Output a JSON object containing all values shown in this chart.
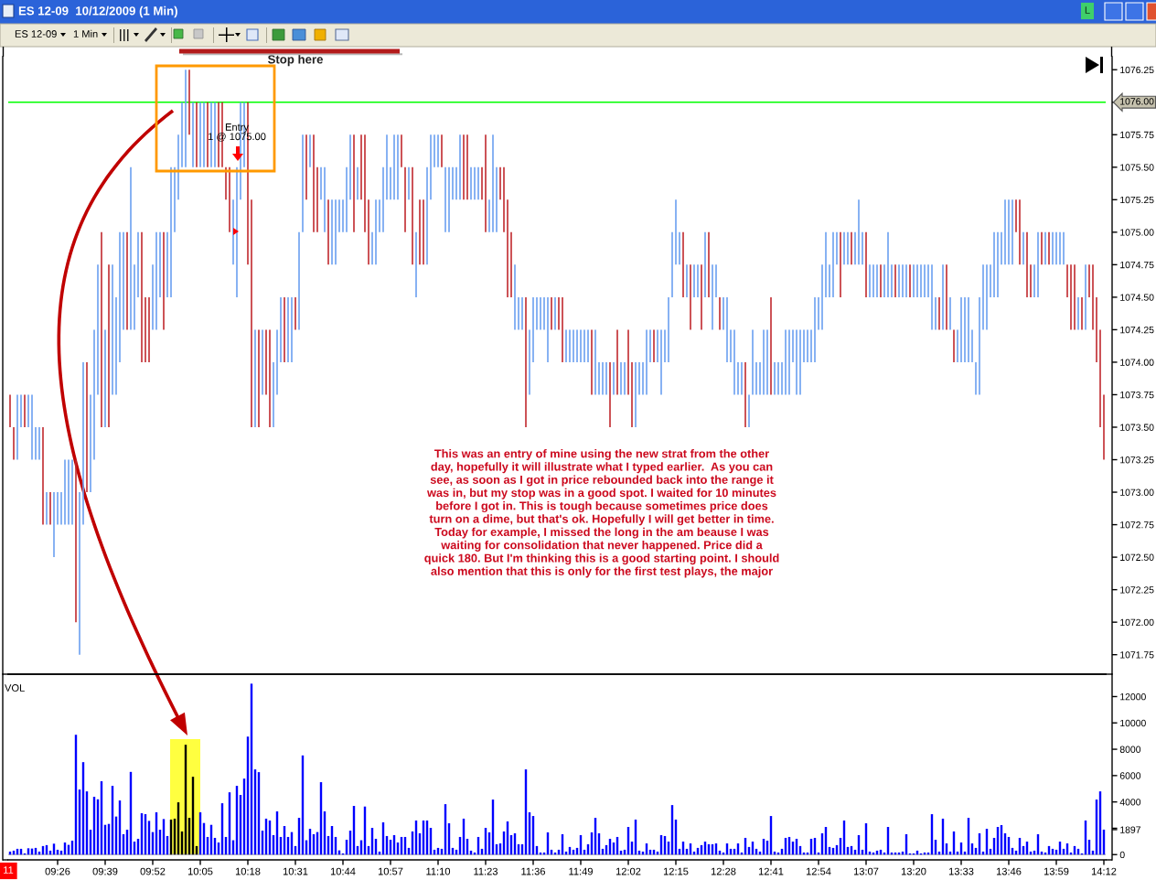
{
  "chart_data": [
    {
      "type": "bar",
      "title": "ES 12-09  10/12/2009 (1 Min)",
      "categories": [
        null,
        null,
        null,
        null,
        null,
        null,
        null,
        null,
        null,
        null,
        null,
        null,
        null,
        null,
        null,
        null,
        null,
        null,
        null,
        null,
        null,
        null,
        null,
        null,
        null,
        null,
        null,
        null,
        null,
        null,
        null,
        null,
        null,
        null,
        null,
        null,
        null,
        null,
        null,
        null,
        null,
        null,
        null,
        null,
        null,
        null,
        null,
        null,
        null,
        null,
        null,
        null,
        null,
        null,
        null,
        null,
        null,
        null,
        null,
        null,
        null,
        null,
        null,
        null,
        null,
        null,
        null,
        null,
        null,
        null,
        null,
        null,
        null,
        null,
        null,
        null,
        null,
        null,
        null,
        null,
        null,
        null,
        null,
        null,
        null,
        null,
        null,
        null,
        null,
        null,
        null,
        null,
        null,
        null,
        null,
        null,
        null,
        null,
        null,
        null,
        null,
        null,
        null,
        null,
        null,
        null,
        null,
        null,
        null,
        null,
        null,
        null,
        null,
        null,
        null,
        null,
        null,
        null,
        null,
        null,
        null,
        null,
        null,
        null,
        null,
        null,
        null,
        null,
        null,
        null,
        null,
        null,
        null,
        null,
        null,
        null,
        null,
        null,
        null,
        null,
        null,
        null,
        null,
        null,
        null,
        null,
        null,
        null,
        null,
        null,
        null,
        null,
        null,
        null,
        null,
        null,
        null,
        null,
        null,
        null,
        null,
        null,
        null,
        null,
        null,
        null,
        null,
        null,
        null,
        null,
        null,
        null,
        null,
        null,
        null,
        null,
        null,
        null,
        null,
        null,
        null,
        null,
        null,
        null,
        null,
        null,
        null,
        null,
        null,
        null,
        null,
        null,
        null,
        null,
        null,
        null,
        null,
        null,
        null,
        null,
        null,
        null,
        null,
        null,
        null,
        null,
        null,
        null,
        null,
        null,
        null,
        null,
        null,
        null,
        null,
        null,
        null,
        null,
        null,
        null,
        null,
        null,
        null,
        null,
        null,
        null,
        null,
        null,
        null,
        null,
        null,
        null,
        null,
        null,
        null,
        null,
        null,
        null,
        null,
        null,
        null,
        null,
        null,
        null,
        null,
        null,
        null,
        null,
        null,
        null,
        null,
        null,
        null,
        null,
        null,
        null,
        null,
        null,
        null,
        null,
        null,
        null,
        null,
        null,
        null,
        null,
        null,
        null,
        null,
        null,
        null,
        null,
        null,
        null,
        null,
        null,
        null,
        null,
        null,
        null,
        null,
        null,
        null,
        null,
        null,
        null,
        null,
        null,
        null,
        null,
        null,
        null,
        null,
        null,
        null,
        null,
        null,
        null,
        null,
        null
      ],
      "base": [
        1073.5,
        1073.25,
        1073.25,
        1073.5,
        1073.5,
        1073.5,
        1073.25,
        1073.25,
        1073.25,
        1072.75,
        1072.75,
        1072.75,
        1072.5,
        1072.75,
        1072.75,
        1072.75,
        1072.75,
        1072.75,
        1072.0,
        1071.75,
        1072.75,
        1073.0,
        1073.0,
        1073.25,
        1073.75,
        1073.5,
        1073.5,
        1073.5,
        1073.75,
        1073.75,
        1074.0,
        1074.25,
        1074.25,
        1074.25,
        1074.25,
        1074.5,
        1074.0,
        1074.0,
        1074.0,
        1074.25,
        1074.25,
        1074.5,
        1074.25,
        1074.5,
        1074.5,
        1075.0,
        1075.25,
        1075.5,
        1075.5,
        1075.75,
        1075.5,
        1075.5,
        1075.5,
        1075.5,
        1075.5,
        1075.5,
        1075.5,
        1075.5,
        1075.5,
        1075.25,
        1075.0,
        1074.75,
        1074.5,
        1075.25,
        1075.5,
        1074.75,
        1073.5,
        1073.5,
        1073.5,
        1073.75,
        1073.75,
        1073.5,
        1073.5,
        1073.75,
        1074.0,
        1074.0,
        1074.0,
        1074.0,
        1074.25,
        1074.25,
        1075.0,
        1075.25,
        1075.5,
        1075.0,
        1075.0,
        1075.25,
        1075.0,
        1074.75,
        1074.75,
        1074.75,
        1075.0,
        1075.0,
        1075.0,
        1075.25,
        1075.0,
        1075.25,
        1075.25,
        1075.0,
        1074.75,
        1074.75,
        1074.75,
        1075.0,
        1075.0,
        1075.25,
        1075.25,
        1075.25,
        1075.25,
        1075.5,
        1075.0,
        1075.25,
        1074.75,
        1074.5,
        1074.75,
        1074.75,
        1074.75,
        1075.25,
        1075.5,
        1075.5,
        1075.5,
        1075.0,
        1075.0,
        1075.25,
        1075.25,
        1075.25,
        1075.25,
        1075.25,
        1075.25,
        1075.25,
        1075.25,
        1075.25,
        1075.0,
        1075.0,
        1075.0,
        1075.0,
        1075.25,
        1075.0,
        1074.5,
        1074.5,
        1074.25,
        1074.25,
        1074.25,
        1073.5,
        1073.75,
        1074.0,
        1074.25,
        1074.25,
        1074.25,
        1074.0,
        1074.25,
        1074.25,
        1074.25,
        1074.0,
        1074.0,
        1074.0,
        1074.0,
        1074.0,
        1074.0,
        1074.0,
        1074.0,
        1073.75,
        1073.75,
        1073.75,
        1073.75,
        1073.75,
        1073.5,
        1073.75,
        1073.75,
        1073.75,
        1073.75,
        1073.75,
        1073.5,
        1073.5,
        1073.75,
        1073.75,
        1073.75,
        1074.0,
        1074.0,
        1074.0,
        1073.75,
        1074.0,
        1074.0,
        1074.5,
        1074.75,
        1074.75,
        1074.5,
        1074.5,
        1074.25,
        1074.5,
        1074.5,
        1074.25,
        1074.5,
        1074.5,
        1074.25,
        1074.5,
        1074.25,
        1074.25,
        1074.0,
        1074.0,
        1073.75,
        1073.75,
        1073.75,
        1073.5,
        1073.5,
        1073.75,
        1073.75,
        1073.75,
        1073.75,
        1073.75,
        1073.75,
        1073.75,
        1073.75,
        1073.75,
        1073.75,
        1073.75,
        1074.0,
        1073.75,
        1073.75,
        1074.0,
        1074.0,
        1074.0,
        1074.0,
        1074.25,
        1074.25,
        1074.5,
        1074.5,
        1074.5,
        1074.75,
        1074.5,
        1074.75,
        1074.75,
        1074.75,
        1074.75,
        1074.75,
        1074.75,
        1074.5,
        1074.5,
        1074.5,
        1074.5,
        1074.5,
        1074.5,
        1074.5,
        1074.5,
        1074.5,
        1074.5,
        1074.5,
        1074.5,
        1074.5,
        1074.5,
        1074.5,
        1074.5,
        1074.5,
        1074.5,
        1074.25,
        1074.25,
        1074.25,
        1074.25,
        1074.25,
        1074.25,
        1074.0,
        1074.0,
        1074.0,
        1074.0,
        1074.0,
        1074.0,
        1073.75,
        1073.75,
        1074.25,
        1074.25,
        1074.5,
        1074.5,
        1074.5,
        1074.75,
        1074.75,
        1074.75,
        1074.75,
        1075.0,
        1074.75,
        1074.75,
        1074.5,
        1074.5,
        1074.5,
        1074.5,
        1074.75,
        1074.75,
        1074.75,
        1074.75,
        1074.75,
        1074.75,
        1074.75,
        1074.5,
        1074.25,
        1074.25,
        1074.25,
        1074.25,
        1074.25,
        1074.5,
        1074.25,
        1074.0,
        1073.5,
        1073.25
      ],
      "values": [
        0.25,
        0.25,
        0.5,
        0.25,
        0.25,
        0.25,
        0.5,
        0.25,
        0.25,
        0.75,
        0.25,
        0.25,
        0.5,
        0.25,
        0.25,
        0.5,
        0.5,
        0.5,
        1.25,
        1.25,
        1.25,
        1.0,
        0.75,
        1.0,
        1.0,
        1.5,
        0.75,
        1.25,
        1.0,
        0.75,
        1.0,
        0.75,
        0.75,
        1.25,
        0.5,
        0.5,
        1.0,
        0.5,
        0.5,
        0.5,
        0.75,
        0.5,
        0.75,
        0.5,
        1.0,
        0.5,
        0.5,
        0.5,
        0.75,
        0.5,
        0.5,
        0.5,
        0.5,
        0.5,
        0.5,
        0.5,
        0.5,
        0.5,
        0.5,
        0.25,
        0.5,
        0.5,
        1.0,
        0.75,
        0.5,
        1.25,
        1.75,
        0.75,
        0.75,
        0.5,
        0.5,
        0.75,
        0.5,
        0.5,
        0.5,
        0.5,
        0.5,
        0.5,
        0.25,
        0.75,
        0.75,
        0.5,
        0.25,
        0.75,
        0.5,
        0.25,
        0.5,
        0.5,
        0.5,
        0.5,
        0.25,
        0.25,
        0.5,
        0.5,
        0.75,
        0.25,
        0.5,
        0.75,
        0.5,
        0.25,
        0.5,
        0.25,
        0.5,
        0.5,
        0.25,
        0.5,
        0.5,
        0.25,
        0.5,
        0.25,
        0.75,
        0.5,
        0.5,
        0.5,
        0.75,
        0.5,
        0.25,
        0.25,
        0.25,
        0.5,
        0.5,
        0.25,
        0.25,
        0.5,
        0.5,
        0.5,
        0.25,
        0.25,
        0.25,
        0.25,
        0.75,
        0.25,
        0.75,
        0.5,
        0.25,
        0.5,
        0.75,
        0.5,
        0.5,
        0.25,
        0.25,
        1.0,
        0.5,
        0.5,
        0.25,
        0.25,
        0.25,
        0.5,
        0.25,
        0.25,
        0.25,
        0.5,
        0.25,
        0.25,
        0.25,
        0.25,
        0.25,
        0.25,
        0.25,
        0.5,
        0.5,
        0.25,
        0.25,
        0.25,
        0.5,
        0.25,
        0.5,
        0.25,
        0.25,
        0.5,
        0.5,
        0.5,
        0.25,
        0.25,
        0.5,
        0.25,
        0.25,
        0.25,
        0.5,
        0.25,
        0.5,
        0.5,
        0.5,
        0.25,
        0.5,
        0.25,
        0.5,
        0.25,
        0.25,
        0.5,
        0.5,
        0.5,
        0.5,
        0.25,
        0.25,
        0.25,
        0.5,
        0.25,
        0.5,
        0.25,
        0.25,
        0.5,
        0.25,
        0.5,
        0.25,
        0.25,
        0.5,
        0.5,
        0.75,
        0.25,
        0.25,
        0.25,
        0.5,
        0.5,
        0.25,
        0.5,
        0.5,
        0.25,
        0.25,
        0.25,
        0.5,
        0.25,
        0.5,
        0.5,
        0.25,
        0.5,
        0.25,
        0.5,
        0.25,
        0.25,
        0.25,
        0.25,
        0.5,
        0.25,
        0.5,
        0.25,
        0.25,
        0.25,
        0.25,
        0.25,
        0.5,
        0.25,
        0.25,
        0.25,
        0.25,
        0.25,
        0.25,
        0.25,
        0.25,
        0.25,
        0.25,
        0.25,
        0.5,
        0.25,
        0.25,
        0.5,
        0.5,
        0.25,
        0.25,
        0.25,
        0.5,
        0.5,
        0.5,
        0.25,
        0.25,
        0.75,
        0.5,
        0.5,
        0.25,
        0.5,
        0.5,
        0.25,
        0.5,
        0.5,
        0.5,
        0.25,
        0.5,
        0.25,
        0.5,
        0.25,
        0.25,
        0.5,
        0.25,
        0.25,
        0.25,
        0.25,
        0.25,
        0.25,
        0.25,
        0.25,
        0.5,
        0.5,
        0.25,
        0.25,
        0.5,
        0.25,
        0.5,
        0.5,
        0.75,
        0.5
      ],
      "colors": [
        "#c0282d",
        "#c0282d",
        "#6a9ff0",
        "#6a9ff0",
        "#c0282d",
        "#6a9ff0",
        "#6a9ff0",
        "#6a9ff0",
        "#6a9ff0",
        "#c0282d",
        "#6a9ff0",
        "#c0282d",
        "#6a9ff0",
        "#6a9ff0",
        "#6a9ff0",
        "#6a9ff0",
        "#6a9ff0",
        "#6a9ff0",
        "#c0282d",
        "#6a9ff0",
        "#6a9ff0",
        "#c0282d",
        "#6a9ff0",
        "#6a9ff0",
        "#6a9ff0",
        "#c0282d",
        "#6a9ff0",
        "#c0282d",
        "#6a9ff0",
        "#6a9ff0",
        "#6a9ff0",
        "#6a9ff0",
        "#c0282d",
        "#6a9ff0",
        "#6a9ff0",
        "#6a9ff0",
        "#c0282d",
        "#c0282d",
        "#c0282d",
        "#6a9ff0",
        "#6a9ff0",
        "#6a9ff0",
        "#c0282d",
        "#6a9ff0",
        "#6a9ff0",
        "#6a9ff0",
        "#6a9ff0",
        "#6a9ff0",
        "#6a9ff0",
        "#c0282d",
        "#6a9ff0",
        "#c0282d",
        "#6a9ff0",
        "#6a9ff0",
        "#c0282d",
        "#6a9ff0",
        "#6a9ff0",
        "#c0282d",
        "#c0282d",
        "#c0282d",
        "#c0282d",
        "#6a9ff0",
        "#6a9ff0",
        "#6a9ff0",
        "#6a9ff0",
        "#c0282d",
        "#c0282d",
        "#6a9ff0",
        "#c0282d",
        "#6a9ff0",
        "#c0282d",
        "#c0282d",
        "#6a9ff0",
        "#6a9ff0",
        "#6a9ff0",
        "#c0282d",
        "#6a9ff0",
        "#6a9ff0",
        "#c0282d",
        "#6a9ff0",
        "#6a9ff0",
        "#c0282d",
        "#6a9ff0",
        "#c0282d",
        "#c0282d",
        "#6a9ff0",
        "#6a9ff0",
        "#c0282d",
        "#6a9ff0",
        "#6a9ff0",
        "#6a9ff0",
        "#6a9ff0",
        "#6a9ff0",
        "#6a9ff0",
        "#c0282d",
        "#6a9ff0",
        "#c0282d",
        "#c0282d",
        "#c0282d",
        "#6a9ff0",
        "#6a9ff0",
        "#6a9ff0",
        "#6a9ff0",
        "#6a9ff0",
        "#6a9ff0",
        "#6a9ff0",
        "#6a9ff0",
        "#c0282d",
        "#c0282d",
        "#6a9ff0",
        "#c0282d",
        "#6a9ff0",
        "#c0282d",
        "#c0282d",
        "#6a9ff0",
        "#6a9ff0",
        "#6a9ff0",
        "#6a9ff0",
        "#c0282d",
        "#6a9ff0",
        "#6a9ff0",
        "#6a9ff0",
        "#6a9ff0",
        "#6a9ff0",
        "#c0282d",
        "#c0282d",
        "#6a9ff0",
        "#6a9ff0",
        "#6a9ff0",
        "#c0282d",
        "#c0282d",
        "#6a9ff0",
        "#6a9ff0",
        "#6a9ff0",
        "#c0282d",
        "#c0282d",
        "#c0282d",
        "#c0282d",
        "#6a9ff0",
        "#6a9ff0",
        "#6a9ff0",
        "#c0282d",
        "#6a9ff0",
        "#6a9ff0",
        "#6a9ff0",
        "#6a9ff0",
        "#6a9ff0",
        "#6a9ff0",
        "#c0282d",
        "#6a9ff0",
        "#c0282d",
        "#c0282d",
        "#6a9ff0",
        "#6a9ff0",
        "#6a9ff0",
        "#6a9ff0",
        "#6a9ff0",
        "#6a9ff0",
        "#6a9ff0",
        "#c0282d",
        "#6a9ff0",
        "#6a9ff0",
        "#6a9ff0",
        "#6a9ff0",
        "#c0282d",
        "#6a9ff0",
        "#c0282d",
        "#6a9ff0",
        "#6a9ff0",
        "#c0282d",
        "#c0282d",
        "#6a9ff0",
        "#6a9ff0",
        "#6a9ff0",
        "#6a9ff0",
        "#6a9ff0",
        "#c0282d",
        "#6a9ff0",
        "#6a9ff0",
        "#6a9ff0",
        "#6a9ff0",
        "#6a9ff0",
        "#6a9ff0",
        "#6a9ff0",
        "#c0282d",
        "#6a9ff0",
        "#c0282d",
        "#6a9ff0",
        "#6a9ff0",
        "#c0282d",
        "#6a9ff0",
        "#c0282d",
        "#6a9ff0",
        "#6a9ff0",
        "#c0282d",
        "#6a9ff0",
        "#6a9ff0",
        "#6a9ff0",
        "#6a9ff0",
        "#6a9ff0",
        "#6a9ff0",
        "#c0282d",
        "#6a9ff0",
        "#6a9ff0",
        "#6a9ff0",
        "#6a9ff0",
        "#6a9ff0",
        "#6a9ff0",
        "#c0282d",
        "#6a9ff0",
        "#6a9ff0",
        "#6a9ff0",
        "#6a9ff0",
        "#6a9ff0",
        "#6a9ff0",
        "#6a9ff0",
        "#6a9ff0",
        "#6a9ff0",
        "#6a9ff0",
        "#6a9ff0",
        "#6a9ff0",
        "#6a9ff0",
        "#6a9ff0",
        "#6a9ff0",
        "#6a9ff0",
        "#6a9ff0",
        "#6a9ff0",
        "#c0282d",
        "#6a9ff0",
        "#6a9ff0",
        "#c0282d",
        "#6a9ff0",
        "#6a9ff0",
        "#6a9ff0",
        "#c0282d",
        "#6a9ff0",
        "#6a9ff0",
        "#6a9ff0",
        "#c0282d",
        "#6a9ff0",
        "#6a9ff0",
        "#6a9ff0",
        "#c0282d",
        "#6a9ff0",
        "#6a9ff0",
        "#6a9ff0",
        "#c0282d",
        "#6a9ff0",
        "#6a9ff0",
        "#6a9ff0",
        "#6a9ff0",
        "#6a9ff0",
        "#6a9ff0",
        "#6a9ff0",
        "#c0282d",
        "#6a9ff0",
        "#c0282d",
        "#6a9ff0",
        "#c0282d",
        "#6a9ff0",
        "#6a9ff0",
        "#6a9ff0",
        "#6a9ff0",
        "#6a9ff0",
        "#6a9ff0",
        "#6a9ff0",
        "#6a9ff0",
        "#6a9ff0",
        "#6a9ff0",
        "#6a9ff0",
        "#6a9ff0",
        "#6a9ff0",
        "#6a9ff0",
        "#6a9ff0",
        "#6a9ff0",
        "#c0282d",
        "#c0282d",
        "#6a9ff0",
        "#c0282d",
        "#c0282d",
        "#6a9ff0",
        "#6a9ff0",
        "#c0282d",
        "#6a9ff0",
        "#c0282d",
        "#6a9ff0",
        "#6a9ff0",
        "#6a9ff0",
        "#6a9ff0",
        "#c0282d",
        "#c0282d",
        "#c0282d",
        "#6a9ff0",
        "#c0282d",
        "#6a9ff0",
        "#c0282d",
        "#c0282d",
        "#c0282d",
        "#c0282d",
        "#c0282d"
      ],
      "ylim": [
        1071.6,
        1076.35
      ],
      "yticks": [
        {
          "value": 1071.75,
          "label": "1071.75"
        },
        {
          "value": 1072.0,
          "label": "1072.00"
        },
        {
          "value": 1072.25,
          "label": "1072.25"
        },
        {
          "value": 1072.5,
          "label": "1072.50"
        },
        {
          "value": 1072.75,
          "label": "1072.75"
        },
        {
          "value": 1073.0,
          "label": "1073.00"
        },
        {
          "value": 1073.25,
          "label": "1073.25"
        },
        {
          "value": 1073.5,
          "label": "1073.50"
        },
        {
          "value": 1073.75,
          "label": "1073.75"
        },
        {
          "value": 1074.0,
          "label": "1074.00"
        },
        {
          "value": 1074.25,
          "label": "1074.25"
        },
        {
          "value": 1074.5,
          "label": "1074.50"
        },
        {
          "value": 1074.75,
          "label": "1074.75"
        },
        {
          "value": 1075.0,
          "label": "1075.00"
        },
        {
          "value": 1075.25,
          "label": "1075.25"
        },
        {
          "value": 1075.5,
          "label": "1075.50"
        },
        {
          "value": 1075.75,
          "label": "1075.75"
        },
        {
          "value": 1076.0,
          "label": null
        },
        {
          "value": 1076.25,
          "label": "1076.25"
        }
      ],
      "tick_labels": "y",
      "ref_lines": [
        {
          "axis": "y",
          "value": 1076.0,
          "label": "1076.00",
          "color": "#00ff00"
        }
      ],
      "annotations": [
        "Stop here",
        "Entry\n1 @ 1075.00",
        "This was an entry of mine using the new strat from the other\nday, hopefully it will illustrate what I typed earlier.  As you can\nsee, as soon as I got in price rebounded back into the range it\nwas in, but my stop was in a good spot. I waited for 10 minutes\nbefore I got in. This is tough because sometimes price does\nturn on a dime, but that's ok. Hopefully I will get better in time.\nToday for example, I missed the long in the am beause I was\nwaiting for consolidation that never happened. Price did a\nquick 180. But I'm thinking this is a good starting point. I should\nalso mention that this is only for the first test plays, the major",
        "ES 12-09",
        "1 Min",
        "L"
      ]
    },
    {
      "type": "bar",
      "title": "VOL",
      "categories": [
        null,
        null,
        null,
        null,
        null,
        null,
        null,
        null,
        null,
        null,
        null,
        null,
        null,
        "09:26",
        null,
        null,
        null,
        null,
        null,
        null,
        null,
        null,
        null,
        null,
        null,
        null,
        "09:39",
        null,
        null,
        null,
        null,
        null,
        null,
        null,
        null,
        null,
        null,
        null,
        null,
        "09:52",
        null,
        null,
        null,
        null,
        null,
        null,
        null,
        null,
        null,
        null,
        null,
        null,
        "10:05",
        null,
        null,
        null,
        null,
        null,
        null,
        null,
        null,
        null,
        null,
        null,
        null,
        "10:18",
        null,
        null,
        null,
        null,
        null,
        null,
        null,
        null,
        null,
        null,
        null,
        null,
        "10:31",
        null,
        null,
        null,
        null,
        null,
        null,
        null,
        null,
        null,
        null,
        null,
        null,
        "10:44",
        null,
        null,
        null,
        null,
        null,
        null,
        null,
        null,
        null,
        null,
        null,
        null,
        "10:57",
        null,
        null,
        null,
        null,
        null,
        null,
        null,
        null,
        null,
        null,
        null,
        null,
        "11:10",
        null,
        null,
        null,
        null,
        null,
        null,
        null,
        null,
        null,
        null,
        null,
        null,
        "11:23",
        null,
        null,
        null,
        null,
        null,
        null,
        null,
        null,
        null,
        null,
        null,
        null,
        "11:36",
        null,
        null,
        null,
        null,
        null,
        null,
        null,
        null,
        null,
        null,
        null,
        null,
        "11:49",
        null,
        null,
        null,
        null,
        null,
        null,
        null,
        null,
        null,
        null,
        null,
        null,
        "12:02",
        null,
        null,
        null,
        null,
        null,
        null,
        null,
        null,
        null,
        null,
        null,
        null,
        "12:15",
        null,
        null,
        null,
        null,
        null,
        null,
        null,
        null,
        null,
        null,
        null,
        null,
        "12:28",
        null,
        null,
        null,
        null,
        null,
        null,
        null,
        null,
        null,
        null,
        null,
        null,
        "12:41",
        null,
        null,
        null,
        null,
        null,
        null,
        null,
        null,
        null,
        null,
        null,
        null,
        "12:54",
        null,
        null,
        null,
        null,
        null,
        null,
        null,
        null,
        null,
        null,
        null,
        null,
        "13:07",
        null,
        null,
        null,
        null,
        null,
        null,
        null,
        null,
        null,
        null,
        null,
        null,
        "13:20",
        null,
        null,
        null,
        null,
        null,
        null,
        null,
        null,
        null,
        null,
        null,
        null,
        "13:33",
        null,
        null,
        null,
        null,
        null,
        null,
        null,
        null,
        null,
        null,
        null,
        null,
        "13:46",
        null,
        null,
        null,
        null,
        null,
        null,
        null,
        null,
        null,
        null,
        null,
        null,
        "13:59",
        null,
        null,
        null,
        null,
        null,
        null,
        null,
        null,
        null,
        null,
        null,
        null,
        "14:12"
      ],
      "values": [
        230,
        300,
        440,
        440,
        90,
        480,
        460,
        510,
        230,
        650,
        720,
        300,
        830,
        370,
        300,
        920,
        740,
        1060,
        9100,
        4940,
        7020,
        4800,
        1890,
        4390,
        4200,
        5570,
        2260,
        2330,
        5220,
        2890,
        4110,
        1550,
        1890,
        6280,
        990,
        1200,
        3140,
        3070,
        2560,
        1710,
        3210,
        1890,
        2700,
        1410,
        2660,
        2730,
        3970,
        1760,
        8340,
        2790,
        5910,
        650,
        3210,
        2400,
        1340,
        2260,
        1270,
        920,
        3900,
        1340,
        4730,
        1090,
        5220,
        4530,
        5770,
        8960,
        12980,
        6470,
        6260,
        1820,
        2730,
        2590,
        1480,
        3280,
        1340,
        2170,
        1340,
        1710,
        650,
        2790,
        7530,
        1090,
        1960,
        1550,
        1710,
        5500,
        3280,
        1410,
        2170,
        1340,
        320,
        90,
        1130,
        1820,
        3700,
        650,
        1090,
        3650,
        650,
        2030,
        1200,
        230,
        2450,
        1410,
        1130,
        1480,
        920,
        1340,
        1340,
        510,
        1760,
        2590,
        1620,
        2590,
        2590,
        2030,
        370,
        510,
        440,
        3830,
        2380,
        510,
        370,
        1340,
        2730,
        1200,
        300,
        160,
        1340,
        440,
        2030,
        1690,
        4180,
        790,
        850,
        1760,
        2520,
        1480,
        1620,
        790,
        790,
        6470,
        3210,
        2930,
        650,
        160,
        160,
        1690,
        370,
        160,
        370,
        1550,
        230,
        580,
        370,
        510,
        1480,
        370,
        790,
        1690,
        2790,
        1620,
        440,
        720,
        1200,
        920,
        1340,
        300,
        370,
        2100,
        990,
        2660,
        300,
        230,
        850,
        370,
        370,
        230,
        1480,
        1410,
        990,
        3760,
        2660,
        440,
        990,
        440,
        850,
        230,
        510,
        720,
        990,
        790,
        790,
        850,
        300,
        160,
        850,
        440,
        440,
        850,
        160,
        1270,
        580,
        990,
        440,
        230,
        1200,
        1060,
        2930,
        230,
        160,
        440,
        1270,
        1340,
        990,
        1200,
        650,
        160,
        160,
        1200,
        1270,
        160,
        1620,
        2100,
        580,
        510,
        720,
        1270,
        2590,
        580,
        650,
        370,
        1480,
        370,
        2380,
        230,
        160,
        300,
        370,
        160,
        2100,
        160,
        160,
        160,
        230,
        1550,
        90,
        90,
        300,
        90,
        160,
        160,
        3070,
        1130,
        230,
        2730,
        850,
        230,
        1760,
        230,
        920,
        230,
        2790,
        850,
        510,
        1620,
        230,
        1960,
        440,
        1270,
        2100,
        2240,
        1620,
        1340,
        510,
        300,
        1270,
        650,
        990,
        230,
        300,
        1550,
        230,
        160,
        650,
        440,
        370,
        990,
        440,
        850,
        160,
        650,
        440,
        90,
        2590,
        1130,
        300,
        4180,
        4800,
        1897
      ],
      "colors": [
        "#0000ff",
        "#0000ff",
        "#0000ff",
        "#0000ff",
        "#0000ff",
        "#0000ff",
        "#0000ff",
        "#0000ff",
        "#0000ff",
        "#0000ff",
        "#0000ff",
        "#0000ff",
        "#0000ff",
        "#0000ff",
        "#0000ff",
        "#0000ff",
        "#0000ff",
        "#0000ff",
        "#0000ff",
        "#0000ff",
        "#0000ff",
        "#0000ff",
        "#0000ff",
        "#0000ff",
        "#0000ff",
        "#0000ff",
        "#0000ff",
        "#0000ff",
        "#0000ff",
        "#0000ff",
        "#0000ff",
        "#0000ff",
        "#0000ff",
        "#0000ff",
        "#0000ff",
        "#0000ff",
        "#0000ff",
        "#0000ff",
        "#0000ff",
        "#0000ff",
        "#0000ff",
        "#0000ff",
        "#0000ff",
        "#0000ff",
        "#000000",
        "#000000",
        "#000000",
        "#000000",
        "#000000",
        "#000000",
        "#000000",
        "#000000",
        "#0000ff",
        "#0000ff",
        "#0000ff",
        "#0000ff",
        "#0000ff",
        "#0000ff",
        "#0000ff",
        "#0000ff",
        "#0000ff",
        "#0000ff",
        "#0000ff",
        "#0000ff",
        "#0000ff",
        "#0000ff",
        "#0000ff",
        "#0000ff",
        "#0000ff",
        "#0000ff",
        "#0000ff",
        "#0000ff",
        "#0000ff",
        "#0000ff",
        "#0000ff",
        "#0000ff",
        "#0000ff",
        "#0000ff",
        "#0000ff",
        "#0000ff",
        "#0000ff",
        "#0000ff",
        "#0000ff",
        "#0000ff",
        "#0000ff",
        "#0000ff",
        "#0000ff",
        "#0000ff",
        "#0000ff",
        "#0000ff",
        "#0000ff",
        "#0000ff",
        "#0000ff",
        "#0000ff",
        "#0000ff",
        "#0000ff",
        "#0000ff",
        "#0000ff",
        "#0000ff",
        "#0000ff",
        "#0000ff",
        "#0000ff",
        "#0000ff",
        "#0000ff",
        "#0000ff",
        "#0000ff",
        "#0000ff",
        "#0000ff",
        "#0000ff",
        "#0000ff",
        "#0000ff",
        "#0000ff",
        "#0000ff",
        "#0000ff",
        "#0000ff",
        "#0000ff",
        "#0000ff",
        "#0000ff",
        "#0000ff",
        "#0000ff",
        "#0000ff",
        "#0000ff",
        "#0000ff",
        "#0000ff",
        "#0000ff",
        "#0000ff",
        "#0000ff",
        "#0000ff",
        "#0000ff",
        "#0000ff",
        "#0000ff",
        "#0000ff",
        "#0000ff",
        "#0000ff",
        "#0000ff",
        "#0000ff",
        "#0000ff",
        "#0000ff",
        "#0000ff",
        "#0000ff",
        "#0000ff",
        "#0000ff",
        "#0000ff",
        "#0000ff",
        "#0000ff",
        "#0000ff",
        "#0000ff",
        "#0000ff",
        "#0000ff",
        "#0000ff",
        "#0000ff",
        "#0000ff",
        "#0000ff",
        "#0000ff",
        "#0000ff",
        "#0000ff",
        "#0000ff",
        "#0000ff",
        "#0000ff",
        "#0000ff",
        "#0000ff",
        "#0000ff",
        "#0000ff",
        "#0000ff",
        "#0000ff",
        "#0000ff",
        "#0000ff",
        "#0000ff",
        "#0000ff",
        "#0000ff",
        "#0000ff",
        "#0000ff",
        "#0000ff",
        "#0000ff",
        "#0000ff",
        "#0000ff",
        "#0000ff",
        "#0000ff",
        "#0000ff",
        "#0000ff",
        "#0000ff",
        "#0000ff",
        "#0000ff",
        "#0000ff",
        "#0000ff",
        "#0000ff",
        "#0000ff",
        "#0000ff",
        "#0000ff",
        "#0000ff",
        "#0000ff",
        "#0000ff",
        "#0000ff",
        "#0000ff",
        "#0000ff",
        "#0000ff",
        "#0000ff",
        "#0000ff",
        "#0000ff",
        "#0000ff",
        "#0000ff",
        "#0000ff",
        "#0000ff",
        "#0000ff",
        "#0000ff",
        "#0000ff",
        "#0000ff",
        "#0000ff",
        "#0000ff",
        "#0000ff",
        "#0000ff",
        "#0000ff",
        "#0000ff",
        "#0000ff",
        "#0000ff",
        "#0000ff",
        "#0000ff",
        "#0000ff",
        "#0000ff",
        "#0000ff",
        "#0000ff",
        "#0000ff",
        "#0000ff",
        "#0000ff",
        "#0000ff",
        "#0000ff",
        "#0000ff",
        "#0000ff",
        "#0000ff",
        "#0000ff",
        "#0000ff",
        "#0000ff",
        "#0000ff",
        "#0000ff",
        "#0000ff",
        "#0000ff",
        "#0000ff",
        "#0000ff",
        "#0000ff",
        "#0000ff",
        "#0000ff",
        "#0000ff",
        "#0000ff",
        "#0000ff",
        "#0000ff",
        "#0000ff",
        "#0000ff",
        "#0000ff",
        "#0000ff",
        "#0000ff",
        "#0000ff",
        "#0000ff",
        "#0000ff",
        "#0000ff",
        "#0000ff",
        "#0000ff",
        "#0000ff",
        "#0000ff",
        "#0000ff",
        "#0000ff",
        "#0000ff",
        "#0000ff",
        "#0000ff",
        "#0000ff",
        "#0000ff",
        "#0000ff",
        "#0000ff",
        "#0000ff",
        "#0000ff",
        "#0000ff",
        "#0000ff",
        "#0000ff",
        "#0000ff",
        "#0000ff",
        "#0000ff",
        "#0000ff",
        "#0000ff",
        "#0000ff",
        "#0000ff",
        "#0000ff",
        "#0000ff",
        "#0000ff",
        "#0000ff",
        "#0000ff",
        "#0000ff",
        "#0000ff",
        "#0000ff",
        "#0000ff",
        "#0000ff",
        "#0000ff",
        "#0000ff",
        "#0000ff",
        "#0000ff",
        "#0000ff",
        "#0000ff",
        "#0000ff",
        "#0000ff",
        "#0000ff",
        "#0000ff",
        "#0000ff"
      ],
      "ylim": [
        -400,
        13700
      ],
      "yticks": [
        0,
        {
          "value": 1897,
          "label": "1897"
        },
        {
          "value": 2000,
          "label": null
        },
        4000,
        6000,
        8000,
        10000,
        12000
      ],
      "ref_lines": [
        {
          "axis": "y",
          "value": 0,
          "color": "#c0c0c0"
        }
      ],
      "annotations": [
        "11"
      ]
    }
  ]
}
